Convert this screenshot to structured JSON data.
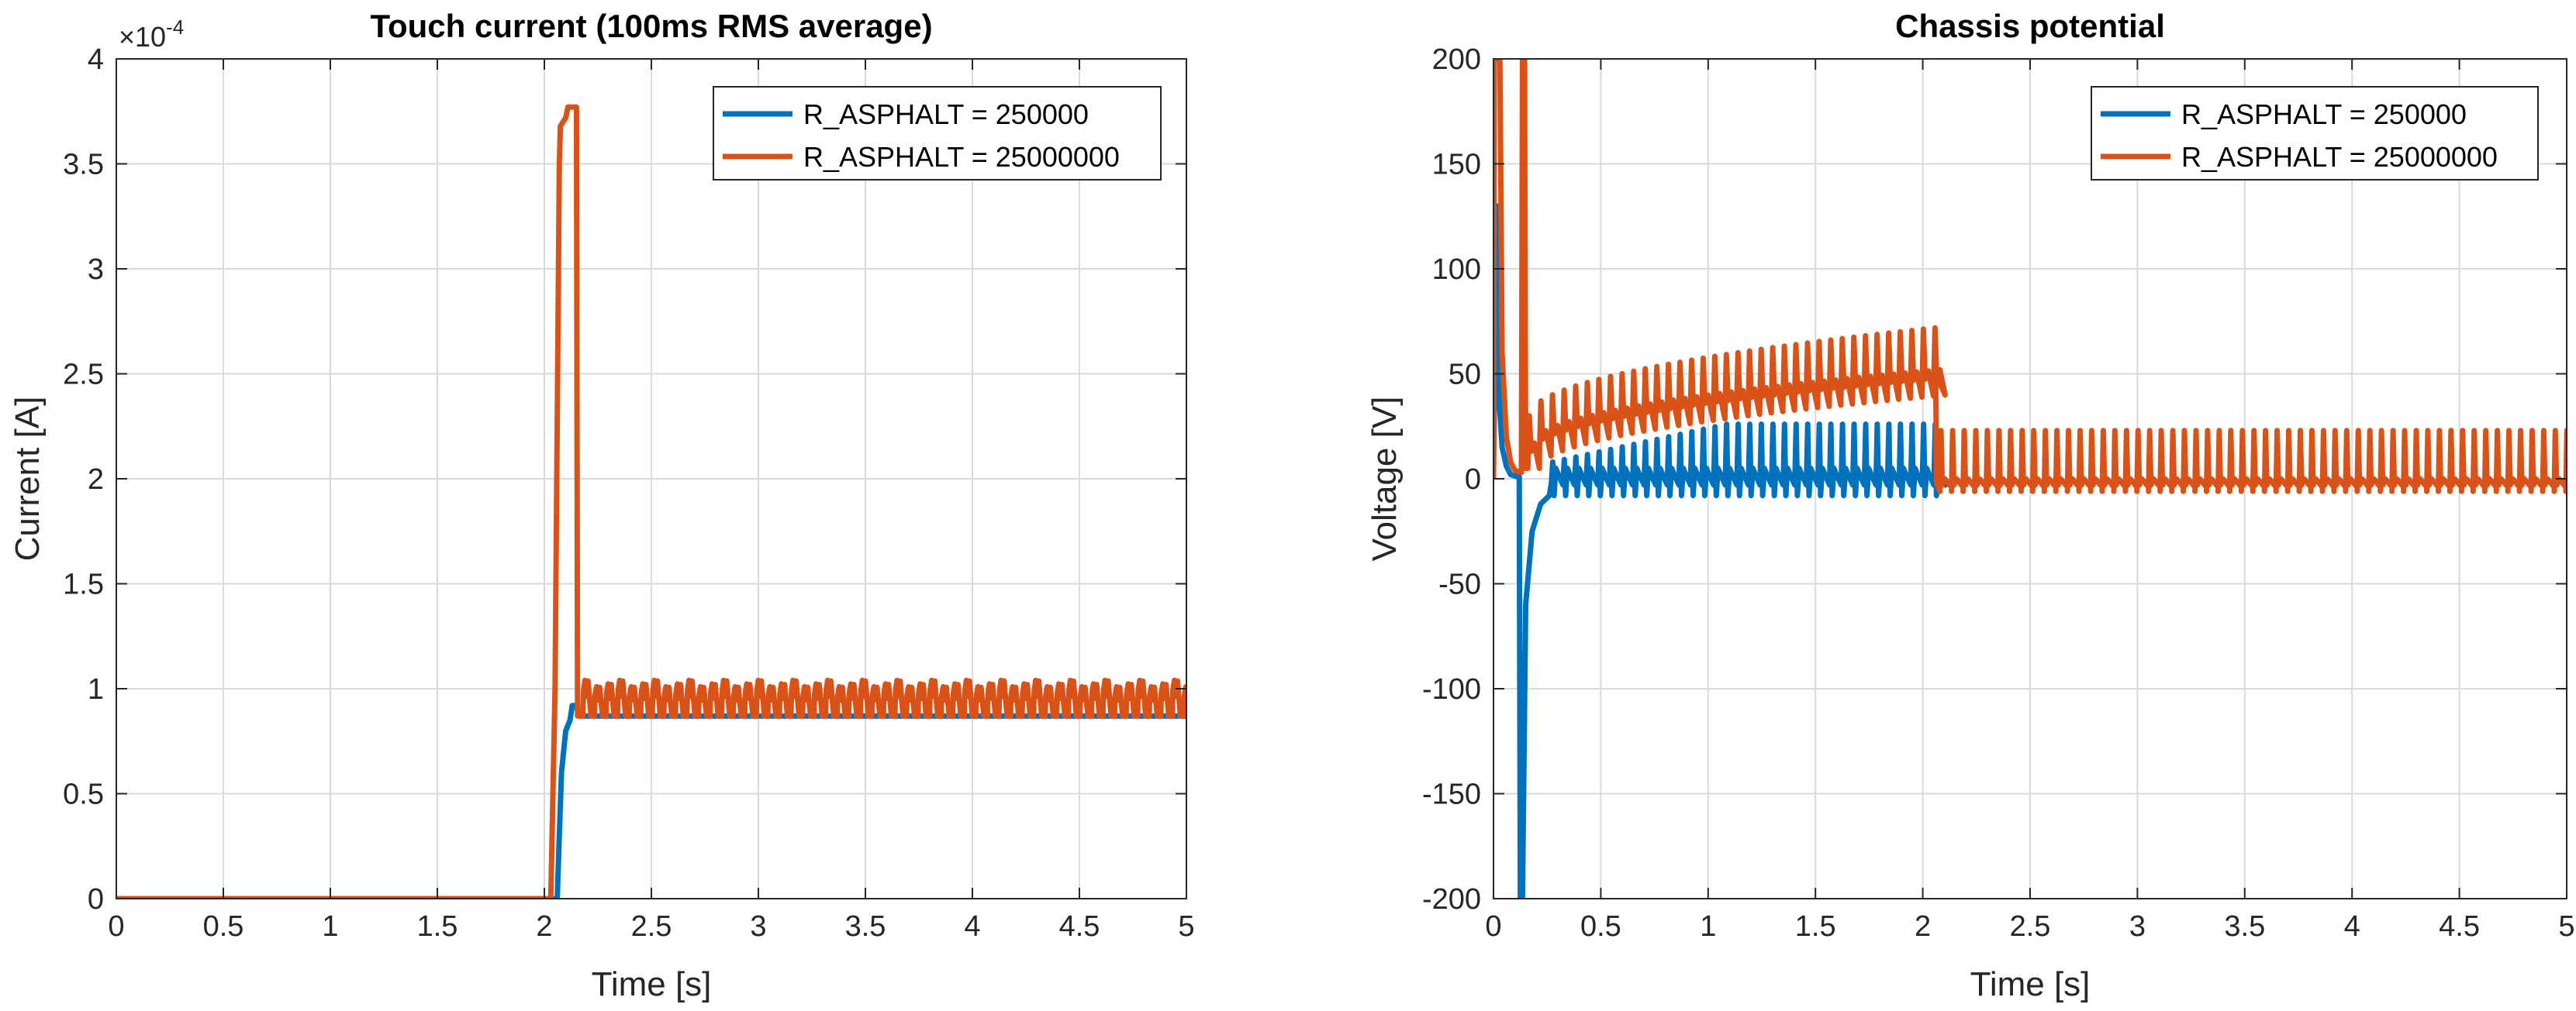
{
  "chart_data": [
    {
      "type": "line",
      "title": "Touch current (100ms RMS average)",
      "xlabel": "Time [s]",
      "ylabel": "Current [A]",
      "xlim": [
        0,
        5
      ],
      "ylim": [
        0,
        0.0004
      ],
      "xticks": [
        0,
        0.5,
        1,
        1.5,
        2,
        2.5,
        3,
        3.5,
        4,
        4.5,
        5
      ],
      "xtick_labels": [
        "0",
        "0.5",
        "1",
        "1.5",
        "2",
        "2.5",
        "3",
        "3.5",
        "4",
        "4.5",
        "5"
      ],
      "yticks": [
        0,
        5e-05,
        0.0001,
        0.00015,
        0.0002,
        0.00025,
        0.0003,
        0.00035,
        0.0004
      ],
      "ytick_labels": [
        "0",
        "0.5",
        "1",
        "1.5",
        "2",
        "2.5",
        "3",
        "3.5",
        "4"
      ],
      "y_exponent": {
        "base": "×10",
        "power": "-4"
      },
      "grid": true,
      "legend_position": "top-right",
      "series": [
        {
          "name": "R_ASPHALT = 250000",
          "color": "#0072BD",
          "points": [
            [
              0,
              0
            ],
            [
              2.06,
              0
            ],
            [
              2.07,
              3e-05
            ],
            [
              2.08,
              6e-05
            ],
            [
              2.09,
              7e-05
            ],
            [
              2.1,
              8e-05
            ],
            [
              2.12,
              8.5e-05
            ],
            [
              2.13,
              9.2e-05
            ],
            [
              2.15,
              9.2e-05
            ],
            [
              2.16,
              8.7e-05
            ],
            [
              5,
              8.7e-05
            ]
          ]
        },
        {
          "name": "R_ASPHALT = 25000000",
          "color": "#D95319",
          "points": [
            [
              0,
              0
            ],
            [
              2.03,
              0
            ],
            [
              2.05,
              0.0001
            ],
            [
              2.07,
              0.00035
            ],
            [
              2.075,
              0.000368
            ],
            [
              2.1,
              0.000372
            ],
            [
              2.11,
              0.000377
            ],
            [
              2.145,
              0.000377
            ],
            [
              2.15,
              0.000377
            ],
            [
              2.155,
              8.7e-05
            ],
            [
              2.19,
              8.7e-05
            ],
            [
              2.2,
              0.000104
            ],
            [
              2.23,
              9.8e-05
            ],
            [
              2.25,
              8.7e-05
            ],
            [
              2.3,
              8.7e-05
            ],
            [
              5,
              8.7e-05
            ]
          ],
          "ripple_after_s": 2.18,
          "ripple_period_s": 0.054,
          "ripple_range": [
            8.7e-05,
            0.000104
          ]
        }
      ]
    },
    {
      "type": "line",
      "title": "Chassis potential",
      "xlabel": "Time [s]",
      "ylabel": "Voltage [V]",
      "xlim": [
        0,
        5
      ],
      "ylim": [
        -200,
        200
      ],
      "xticks": [
        0,
        0.5,
        1,
        1.5,
        2,
        2.5,
        3,
        3.5,
        4,
        4.5,
        5
      ],
      "xtick_labels": [
        "0",
        "0.5",
        "1",
        "1.5",
        "2",
        "2.5",
        "3",
        "3.5",
        "4",
        "4.5",
        "5"
      ],
      "yticks": [
        -200,
        -150,
        -100,
        -50,
        0,
        50,
        100,
        150,
        200
      ],
      "ytick_labels": [
        "-200",
        "-150",
        "-100",
        "-50",
        "0",
        "50",
        "100",
        "150",
        "200"
      ],
      "grid": true,
      "legend_position": "top-right",
      "series": [
        {
          "name": "R_ASPHALT = 250000",
          "color": "#0072BD",
          "x_end": 2.06,
          "spike_period_s": 0.054,
          "spike_peak_v": 26,
          "spike_trough_v": -7,
          "initial_peak_v": 130,
          "initial_dip_v": -200
        },
        {
          "name": "R_ASPHALT = 25000000",
          "color": "#D95319",
          "x_end": 5,
          "spike_period_s": 0.054,
          "ramp_start_v": 30,
          "ramp_end_v": 72,
          "ramp_end_s": 2.06,
          "after_step_peak_v": 23,
          "after_step_trough_v": -6,
          "initial_peak_v": 200
        }
      ]
    }
  ]
}
